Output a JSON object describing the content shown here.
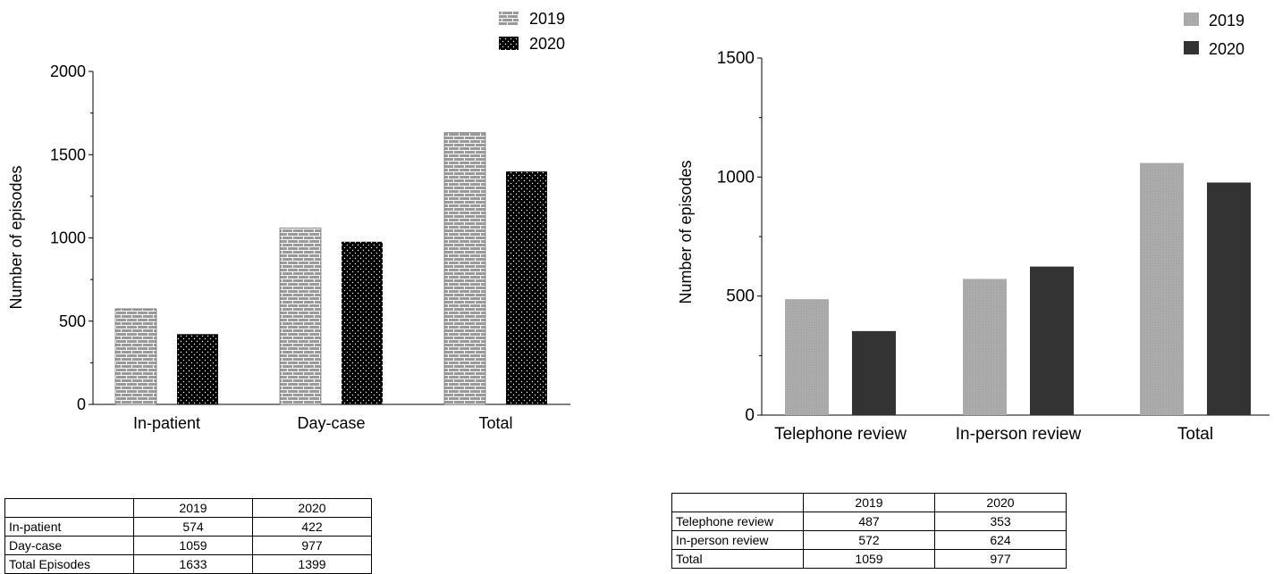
{
  "chart_data": [
    {
      "type": "bar",
      "title": "",
      "xlabel": "",
      "ylabel": "Number of episodes",
      "categories": [
        "In-patient",
        "Day-case",
        "Total"
      ],
      "series": [
        {
          "name": "2019",
          "values": [
            574,
            1059,
            1633
          ],
          "pattern": "brick",
          "color": "#9a9a9a"
        },
        {
          "name": "2020",
          "values": [
            422,
            977,
            1399
          ],
          "pattern": "dots",
          "color": "#000000"
        }
      ],
      "ylim": [
        0,
        2000
      ],
      "yticks": [
        "0",
        "500",
        "1000",
        "1500",
        "2000"
      ],
      "grid": false,
      "legend_position": "top-right"
    },
    {
      "type": "bar",
      "title": "",
      "xlabel": "",
      "ylabel": "Number of episodes",
      "categories": [
        "Telephone review",
        "In-person review",
        "Total"
      ],
      "series": [
        {
          "name": "2019",
          "values": [
            487,
            572,
            1059
          ],
          "pattern": "fine-dots",
          "color": "#a6a6a6"
        },
        {
          "name": "2020",
          "values": [
            353,
            624,
            977
          ],
          "pattern": "solid",
          "color": "#333333"
        }
      ],
      "ylim": [
        0,
        1500
      ],
      "yticks": [
        "0",
        "500",
        "1000",
        "1500"
      ],
      "grid": false,
      "legend_position": "top-right"
    }
  ],
  "tables": {
    "left": {
      "header": [
        "",
        "2019",
        "2020"
      ],
      "rows": [
        [
          "In-patient",
          "574",
          "422"
        ],
        [
          "Day-case",
          "1059",
          "977"
        ],
        [
          "Total Episodes",
          "1633",
          "1399"
        ]
      ]
    },
    "right": {
      "header": [
        "",
        "2019",
        "2020"
      ],
      "rows": [
        [
          "Telephone review",
          "487",
          "353"
        ],
        [
          "In-person review",
          "572",
          "624"
        ],
        [
          "Total",
          "1059",
          "977"
        ]
      ]
    }
  }
}
